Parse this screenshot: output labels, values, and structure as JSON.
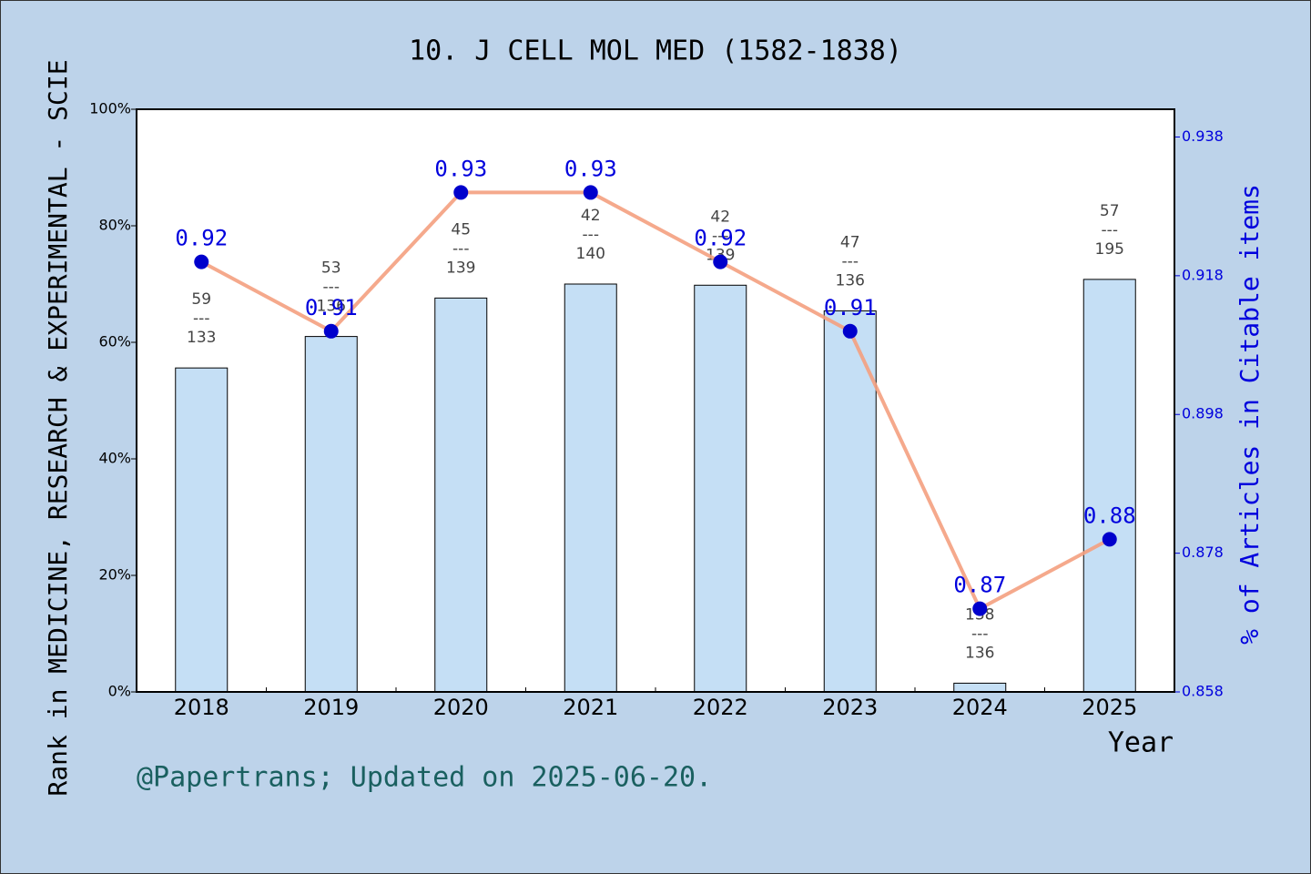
{
  "chart_data": {
    "type": "bar-line",
    "title": "10. J CELL MOL MED (1582-1838)",
    "x_label": "Year",
    "y_label": "Rank in MEDICINE, RESEARCH & EXPERIMENTAL - SCIE",
    "y2_label": "% of Articles in Citable items",
    "footnote": "@Papertrans; Updated on 2025-06-20.",
    "categories": [
      "2018",
      "2019",
      "2020",
      "2021",
      "2022",
      "2023",
      "2024",
      "2025"
    ],
    "bars": {
      "values": [
        55.6,
        61.0,
        67.6,
        70.0,
        69.8,
        65.4,
        1.5,
        70.8
      ],
      "color": "#c5dff5"
    },
    "line": {
      "values": [
        0.92,
        0.91,
        0.93,
        0.93,
        0.92,
        0.91,
        0.87,
        0.88
      ],
      "color": "#f4a07f",
      "marker_color": "#0000cc",
      "axis": "y2"
    },
    "rank": [
      59,
      53,
      45,
      42,
      42,
      47,
      138,
      57
    ],
    "total": [
      133,
      136,
      139,
      140,
      139,
      136,
      136,
      195
    ],
    "separator": "---",
    "ylim": [
      0,
      100
    ],
    "yticks": [
      {
        "value": 0,
        "label": "0%"
      },
      {
        "value": 20,
        "label": "20%"
      },
      {
        "value": 40,
        "label": "40%"
      },
      {
        "value": 60,
        "label": "60%"
      },
      {
        "value": 80,
        "label": "80%"
      },
      {
        "value": 100,
        "label": "100%"
      }
    ],
    "y2lim": [
      0.858,
      0.942
    ],
    "y2ticks": [
      0.858,
      0.878,
      0.898,
      0.918,
      0.938
    ]
  }
}
